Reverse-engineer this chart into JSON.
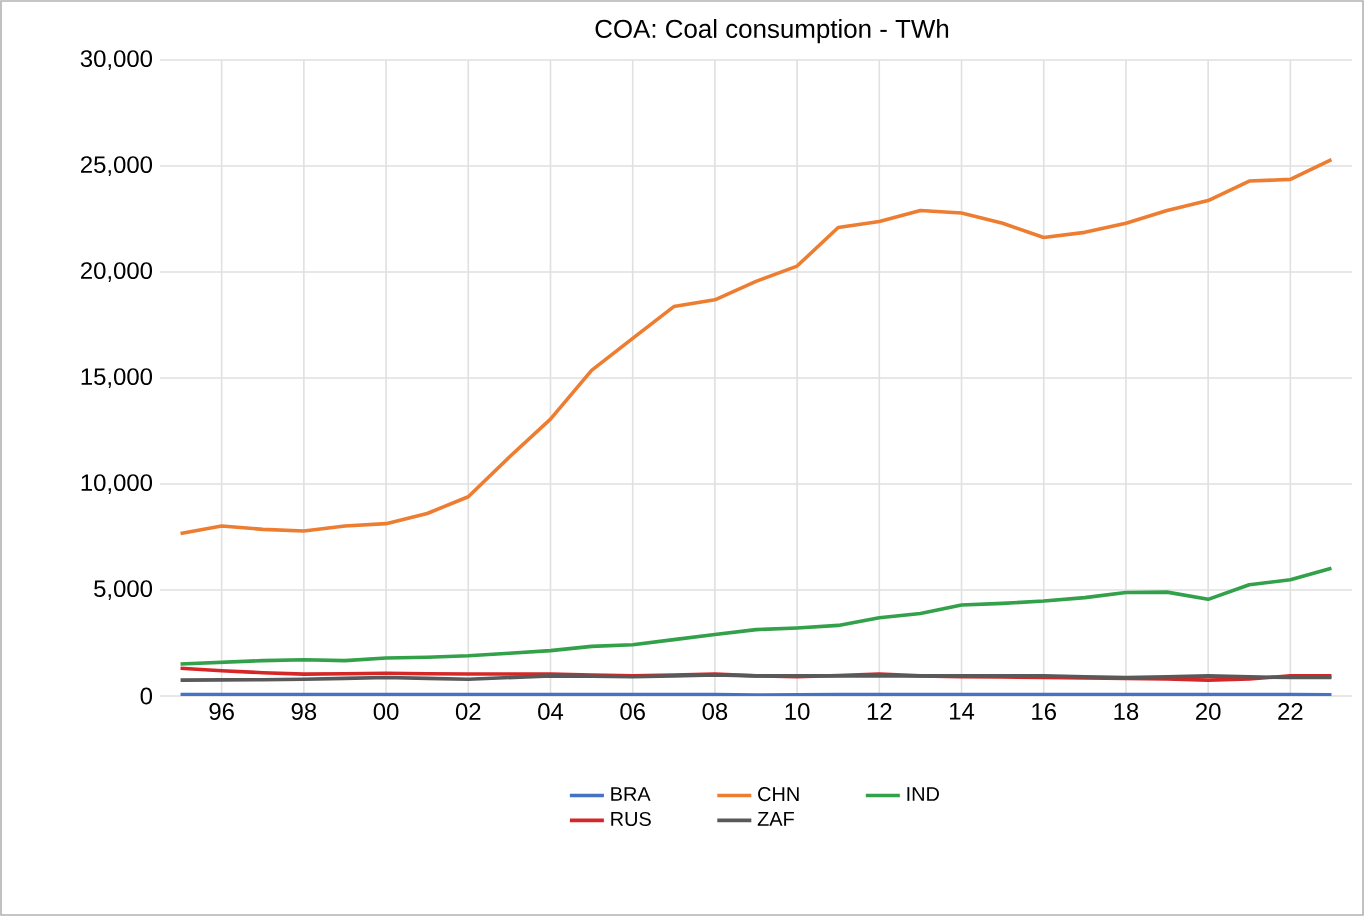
{
  "chart_data": {
    "type": "line",
    "title": "COA: Coal consumption - TWh",
    "x": [
      1995,
      1996,
      1997,
      1998,
      1999,
      2000,
      2001,
      2002,
      2003,
      2004,
      2005,
      2006,
      2007,
      2008,
      2009,
      2010,
      2011,
      2012,
      2013,
      2014,
      2015,
      2016,
      2017,
      2018,
      2019,
      2020,
      2021,
      2022,
      2023
    ],
    "series": [
      {
        "name": "BRA",
        "color": "#4472c4",
        "values": [
          70,
          70,
          70,
          70,
          70,
          70,
          70,
          70,
          70,
          70,
          70,
          70,
          70,
          70,
          40,
          60,
          70,
          70,
          70,
          70,
          70,
          70,
          70,
          70,
          70,
          70,
          70,
          70,
          60
        ]
      },
      {
        "name": "CHN",
        "color": "#ed7d31",
        "values": [
          7660,
          8020,
          7860,
          7780,
          8020,
          8130,
          8610,
          9400,
          11270,
          13060,
          15360,
          16870,
          18370,
          18690,
          19560,
          20280,
          22100,
          22380,
          22900,
          22780,
          22300,
          21630,
          21870,
          22300,
          22900,
          23370,
          24290,
          24370,
          25300
        ]
      },
      {
        "name": "IND",
        "color": "#33a04a",
        "values": [
          1510,
          1590,
          1670,
          1710,
          1670,
          1790,
          1830,
          1900,
          2020,
          2140,
          2340,
          2420,
          2660,
          2900,
          3130,
          3210,
          3330,
          3690,
          3890,
          4290,
          4370,
          4480,
          4640,
          4880,
          4900,
          4560,
          5250,
          5480,
          6030
        ]
      },
      {
        "name": "RUS",
        "color": "#d62728",
        "values": [
          1310,
          1190,
          1100,
          1030,
          1050,
          1070,
          1050,
          1040,
          1040,
          1030,
          990,
          950,
          990,
          1030,
          950,
          910,
          970,
          1030,
          950,
          910,
          900,
          870,
          850,
          830,
          800,
          750,
          800,
          950,
          950
        ]
      },
      {
        "name": "ZAF",
        "color": "#595959",
        "values": [
          750,
          760,
          770,
          790,
          830,
          870,
          830,
          790,
          870,
          950,
          930,
          910,
          950,
          990,
          950,
          950,
          950,
          950,
          950,
          950,
          950,
          950,
          910,
          870,
          910,
          950,
          910,
          870,
          870
        ]
      }
    ],
    "xlim": [
      1994.5,
      2023.5
    ],
    "xticks": [
      {
        "value": 1996,
        "label": "96"
      },
      {
        "value": 1998,
        "label": "98"
      },
      {
        "value": 2000,
        "label": "00"
      },
      {
        "value": 2002,
        "label": "02"
      },
      {
        "value": 2004,
        "label": "04"
      },
      {
        "value": 2006,
        "label": "06"
      },
      {
        "value": 2008,
        "label": "08"
      },
      {
        "value": 2010,
        "label": "10"
      },
      {
        "value": 2012,
        "label": "12"
      },
      {
        "value": 2014,
        "label": "14"
      },
      {
        "value": 2016,
        "label": "16"
      },
      {
        "value": 2018,
        "label": "18"
      },
      {
        "value": 2020,
        "label": "20"
      },
      {
        "value": 2022,
        "label": "22"
      }
    ],
    "ylim": [
      0,
      30000
    ],
    "yticks": [
      {
        "value": 0,
        "label": "0"
      },
      {
        "value": 5000,
        "label": "5,000"
      },
      {
        "value": 10000,
        "label": "10,000"
      },
      {
        "value": 15000,
        "label": "15,000"
      },
      {
        "value": 20000,
        "label": "20,000"
      },
      {
        "value": 25000,
        "label": "25,000"
      },
      {
        "value": 30000,
        "label": "30,000"
      }
    ],
    "grid": true,
    "legend": "bottom",
    "marker": "none",
    "line_style": "solid"
  }
}
